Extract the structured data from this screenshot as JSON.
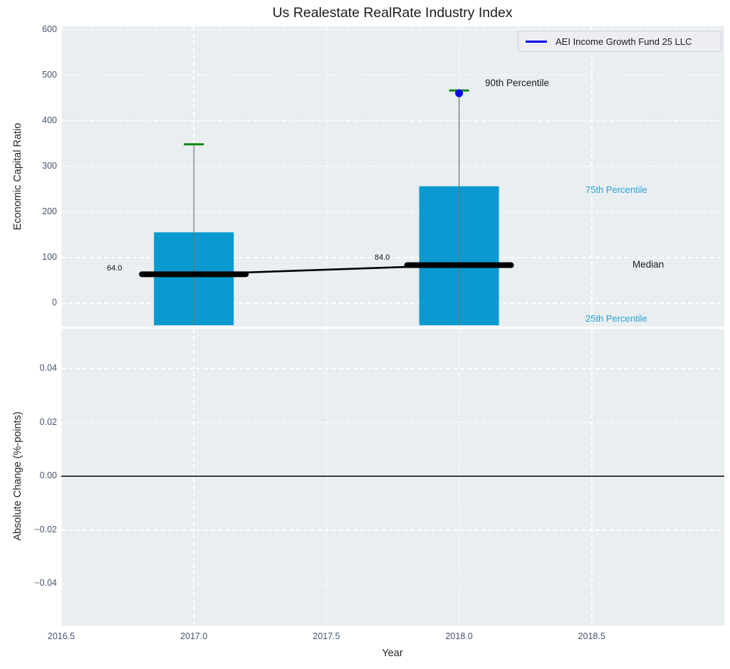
{
  "title": "Us Realestate RealRate Industry Index",
  "legend": {
    "label": "AEI Income Growth Fund 25 LLC"
  },
  "labels": {
    "xlabel": "Year",
    "ylabel_top": "Economic Capital Ratio",
    "ylabel_bottom": "Absolute Change (%-points)",
    "p90_annotation": "90th Percentile",
    "p75_annotation": "75th Percentile",
    "median_annotation": "Median",
    "p25_annotation": "25th Percentile",
    "median_value_2017": "64.0",
    "median_value_2018": "84.0"
  },
  "colors": {
    "bar": "#0a9ad0",
    "percentile_label": "#29a3d3",
    "p90_cap": "#118811",
    "fund_line": "#0000ee",
    "median_line": "#000000",
    "whisker": "#707070",
    "zero_line": "#000000",
    "panel_bg": "#e9eef1",
    "grid": "#ffffff",
    "tick_text": "#44546f"
  },
  "chart_data": [
    {
      "type": "bar",
      "panel": "top",
      "title": "Us Realestate RealRate Industry Index",
      "xlabel": "Year",
      "ylabel": "Economic Capital Ratio",
      "xlim": [
        2016.5,
        2019.0
      ],
      "ylim": [
        -51,
        607
      ],
      "x_ticks": {
        "values": [
          2016.5,
          2017.0,
          2017.5,
          2018.0,
          2018.5
        ],
        "labels": [
          "2016.5",
          "2017.0",
          "2017.5",
          "2018.0",
          "2018.5"
        ]
      },
      "y_ticks": {
        "values": [
          0,
          100,
          200,
          300,
          400,
          500,
          600
        ],
        "labels": [
          "0",
          "100",
          "200",
          "300",
          "400",
          "500",
          "600"
        ]
      },
      "grid": {
        "style": "dashed",
        "color": "#ffffff",
        "on": true
      },
      "legend_position": "upper right",
      "groups": [
        {
          "year": 2017,
          "p25": null,
          "median": 64.0,
          "p75": 156,
          "p90": 349,
          "fund_value": null
        },
        {
          "year": 2018,
          "p25": null,
          "median": 84.0,
          "p75": 257,
          "p90": 467,
          "fund_value": 461
        }
      ],
      "median_trend": [
        [
          2017,
          64.0
        ],
        [
          2018,
          84.0
        ]
      ],
      "series": [
        {
          "name": "AEI Income Growth Fund 25 LLC",
          "color": "#0000ee",
          "points": [
            [
              2018,
              461
            ]
          ]
        }
      ]
    },
    {
      "type": "line",
      "panel": "bottom",
      "xlabel": "Year",
      "ylabel": "Absolute Change (%-points)",
      "xlim": [
        2016.5,
        2019.0
      ],
      "ylim": [
        -0.0555,
        0.0548
      ],
      "x_ticks": {
        "values": [
          2016.5,
          2017.0,
          2017.5,
          2018.0,
          2018.5
        ],
        "labels": [
          "2016.5",
          "2017.0",
          "2017.5",
          "2018.0",
          "2018.5"
        ]
      },
      "y_ticks": {
        "values": [
          0.04,
          0.02,
          0,
          -0.02,
          -0.04
        ],
        "labels": [
          "0.04",
          "0.02",
          "0.00",
          "−0.02",
          "−0.04"
        ]
      },
      "grid": {
        "style": "dashed",
        "color": "#ffffff",
        "on": true
      },
      "zero_line": 0.0,
      "series": []
    }
  ]
}
